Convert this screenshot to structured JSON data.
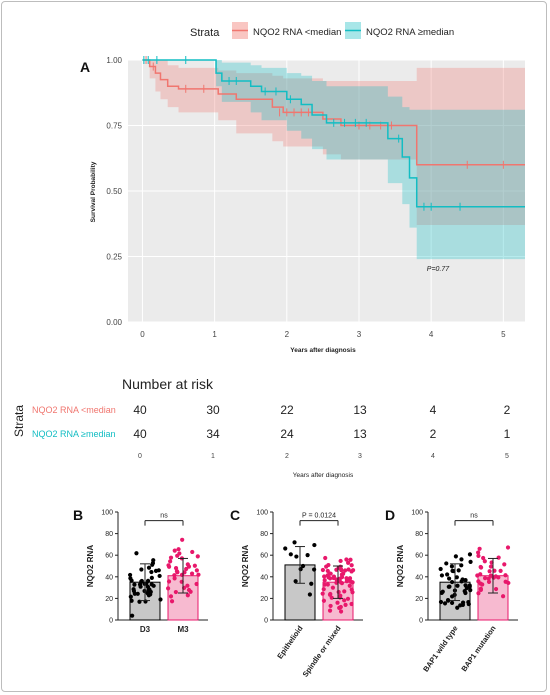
{
  "panels": {
    "a": "A",
    "b": "B",
    "c": "C",
    "d": "D"
  },
  "legend": {
    "title": "Strata",
    "items": [
      {
        "label": "NQO2 RNA <median",
        "color": "#f0766f"
      },
      {
        "label": "NQO2 RNA ≥median",
        "color": "#12bdc3"
      }
    ]
  },
  "risk_table": {
    "title": "Number at risk",
    "strata_label": "Strata",
    "rows": [
      {
        "label": "NQO2 RNA <median",
        "color": "#f0766f",
        "values": [
          "40",
          "30",
          "22",
          "13",
          "4",
          "2"
        ]
      },
      {
        "label": "NQO2 RNA ≥median",
        "color": "#12bdc3",
        "values": [
          "40",
          "34",
          "24",
          "13",
          "2",
          "1"
        ]
      }
    ],
    "x_ticks": [
      "0",
      "1",
      "2",
      "3",
      "4",
      "5"
    ],
    "xlabel": "Years after diagnosis"
  },
  "chart_data": [
    {
      "type": "line",
      "panel": "A",
      "title": "",
      "xlabel": "Years after diagnosis",
      "ylabel": "Survival Probability",
      "xlim": [
        -0.2,
        5.3
      ],
      "ylim": [
        0,
        1
      ],
      "x_ticks": [
        "0",
        "1",
        "2",
        "3",
        "4",
        "5"
      ],
      "y_ticks": [
        "0.00",
        "0.25",
        "0.50",
        "0.75",
        "1.00"
      ],
      "annotation": "P=0.77",
      "series": [
        {
          "name": "NQO2 RNA <median",
          "color": "#f0766f",
          "steps": [
            [
              0,
              1.0
            ],
            [
              0.1,
              0.975
            ],
            [
              0.18,
              0.95
            ],
            [
              0.25,
              0.925
            ],
            [
              0.35,
              0.9
            ],
            [
              0.5,
              0.89
            ],
            [
              1.05,
              0.87
            ],
            [
              1.3,
              0.85
            ],
            [
              1.8,
              0.82
            ],
            [
              1.95,
              0.8
            ],
            [
              2.5,
              0.775
            ],
            [
              2.75,
              0.75
            ],
            [
              3.8,
              0.6
            ],
            [
              5.3,
              0.6
            ]
          ],
          "ci_upper": [
            1.0,
            1.0,
            1.0,
            1.0,
            0.98,
            0.97,
            0.96,
            0.95,
            0.94,
            0.93,
            0.92,
            0.92,
            0.97,
            0.97
          ],
          "ci_lower": [
            1.0,
            0.93,
            0.88,
            0.85,
            0.82,
            0.8,
            0.77,
            0.72,
            0.69,
            0.67,
            0.64,
            0.62,
            0.37,
            0.37
          ],
          "censored": [
            [
              0.05,
              1.0
            ],
            [
              0.15,
              0.975
            ],
            [
              0.6,
              0.89
            ],
            [
              0.85,
              0.89
            ],
            [
              1.9,
              0.8
            ],
            [
              2.0,
              0.8
            ],
            [
              2.1,
              0.8
            ],
            [
              2.2,
              0.8
            ],
            [
              2.3,
              0.8
            ],
            [
              3.0,
              0.75
            ],
            [
              3.15,
              0.75
            ],
            [
              3.3,
              0.75
            ],
            [
              3.45,
              0.75
            ],
            [
              4.5,
              0.6
            ],
            [
              5.0,
              0.6
            ]
          ]
        },
        {
          "name": "NQO2 RNA ≥median",
          "color": "#12bdc3",
          "steps": [
            [
              0,
              1.0
            ],
            [
              1.02,
              0.95
            ],
            [
              1.1,
              0.92
            ],
            [
              1.5,
              0.9
            ],
            [
              1.65,
              0.88
            ],
            [
              2.0,
              0.85
            ],
            [
              2.2,
              0.83
            ],
            [
              2.35,
              0.79
            ],
            [
              2.55,
              0.76
            ],
            [
              3.4,
              0.7
            ],
            [
              3.6,
              0.63
            ],
            [
              3.7,
              0.55
            ],
            [
              3.8,
              0.44
            ],
            [
              5.3,
              0.44
            ]
          ],
          "ci_upper": [
            1.0,
            1.0,
            0.99,
            0.98,
            0.97,
            0.95,
            0.94,
            0.92,
            0.9,
            0.86,
            0.82,
            0.81,
            0.81,
            0.81
          ],
          "ci_lower": [
            1.0,
            0.9,
            0.84,
            0.8,
            0.77,
            0.73,
            0.7,
            0.66,
            0.62,
            0.53,
            0.45,
            0.36,
            0.24,
            0.24
          ],
          "censored": [
            [
              0.02,
              1.0
            ],
            [
              0.08,
              1.0
            ],
            [
              0.2,
              1.0
            ],
            [
              0.6,
              1.0
            ],
            [
              1.2,
              0.92
            ],
            [
              1.3,
              0.92
            ],
            [
              1.7,
              0.88
            ],
            [
              1.85,
              0.88
            ],
            [
              2.05,
              0.85
            ],
            [
              2.65,
              0.76
            ],
            [
              2.8,
              0.76
            ],
            [
              2.95,
              0.76
            ],
            [
              3.1,
              0.76
            ],
            [
              3.55,
              0.7
            ],
            [
              3.9,
              0.44
            ],
            [
              4.0,
              0.44
            ],
            [
              4.4,
              0.44
            ]
          ]
        }
      ]
    },
    {
      "type": "bar",
      "panel": "B",
      "ylabel": "NQO2 RNA",
      "ylim": [
        0,
        100
      ],
      "y_ticks": [
        "0",
        "20",
        "40",
        "60",
        "80",
        "100"
      ],
      "categories": [
        "D3",
        "M3"
      ],
      "values": [
        35,
        41
      ],
      "errors": [
        17,
        16
      ],
      "colors": [
        "#000000",
        "#e8186b"
      ],
      "fills": [
        "#c8c8c8",
        "#f7bad0"
      ],
      "counts": [
        43,
        38
      ],
      "significance": "ns"
    },
    {
      "type": "bar",
      "panel": "C",
      "ylabel": "NQO2 RNA",
      "ylim": [
        0,
        100
      ],
      "y_ticks": [
        "0",
        "20",
        "40",
        "60",
        "80",
        "100"
      ],
      "categories": [
        "Epithelioid",
        "Spindle or mixed"
      ],
      "values": [
        51,
        35
      ],
      "errors": [
        17,
        15
      ],
      "colors": [
        "#000000",
        "#e8186b"
      ],
      "fills": [
        "#c8c8c8",
        "#f7bad0"
      ],
      "counts": [
        12,
        68
      ],
      "significance": "P = 0.0124"
    },
    {
      "type": "bar",
      "panel": "D",
      "ylabel": "NQO2 RNA",
      "ylim": [
        0,
        100
      ],
      "y_ticks": [
        "0",
        "20",
        "40",
        "60",
        "80",
        "100"
      ],
      "categories": [
        "BAP1 wild type",
        "BAP1 mutation"
      ],
      "values": [
        35,
        41
      ],
      "errors": [
        17,
        16
      ],
      "colors": [
        "#000000",
        "#e8186b"
      ],
      "fills": [
        "#c8c8c8",
        "#f7bad0"
      ],
      "counts": [
        45,
        36
      ],
      "significance": "ns"
    }
  ]
}
